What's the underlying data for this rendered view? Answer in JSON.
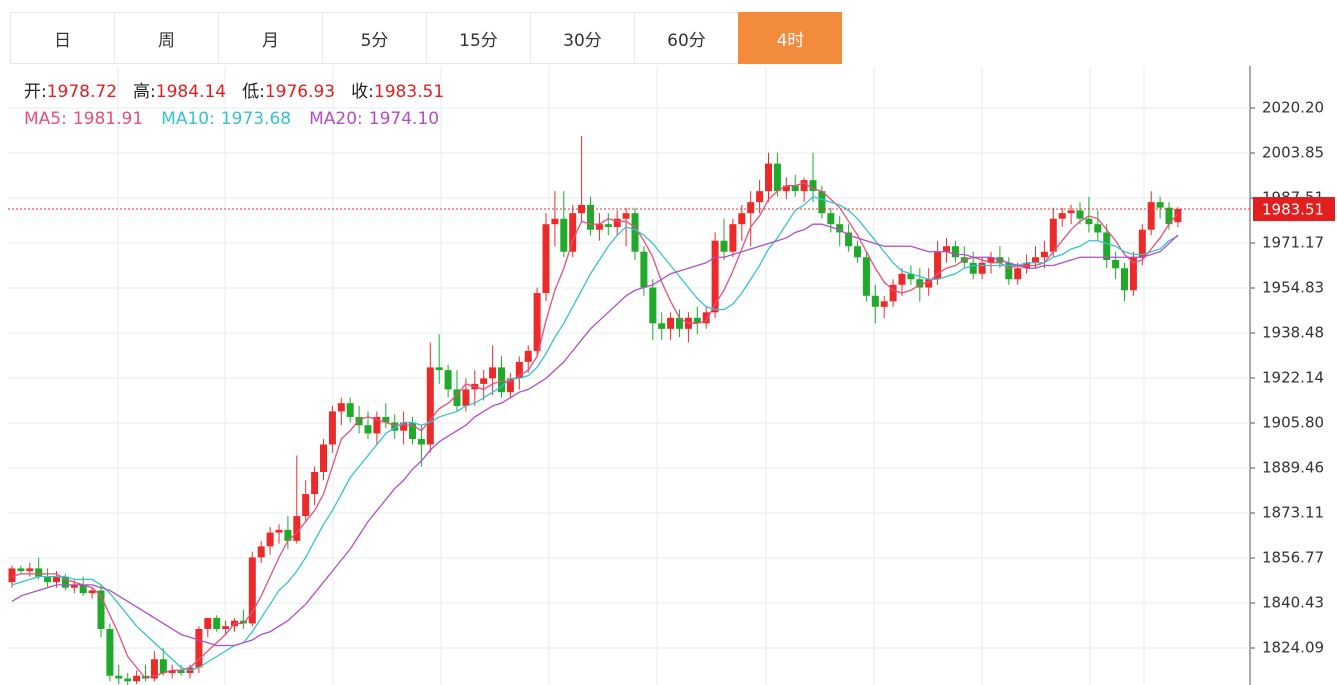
{
  "tabs": [
    "日",
    "周",
    "月",
    "5分",
    "15分",
    "30分",
    "60分",
    "4时"
  ],
  "active_tab": 7,
  "chart_data": {
    "type": "candlestick",
    "ohlc_legend": [
      {
        "label": "开:",
        "value": 1978.72
      },
      {
        "label": "高:",
        "value": 1984.14
      },
      {
        "label": "低:",
        "value": 1976.93
      },
      {
        "label": "收:",
        "value": 1983.51
      }
    ],
    "up_color": "#eb2a2a",
    "down_color": "#1faa2a",
    "current_price": 1983.51,
    "ylim": [
      1810.65,
      2035.45
    ],
    "yticks": [
      {
        "value": 2020.2,
        "label": "2020.20"
      },
      {
        "value": 2003.85,
        "label": "2003.85"
      },
      {
        "value": 1987.51,
        "label": "1987.51"
      },
      {
        "value": 1971.17,
        "label": "1971.17"
      },
      {
        "value": 1954.83,
        "label": "1954.83"
      },
      {
        "value": 1938.48,
        "label": "1938.48"
      },
      {
        "value": 1922.14,
        "label": "1922.14"
      },
      {
        "value": 1905.8,
        "label": "1905.80"
      },
      {
        "value": 1889.46,
        "label": "1889.46"
      },
      {
        "value": 1873.11,
        "label": "1873.11"
      },
      {
        "value": 1856.77,
        "label": "1856.77"
      },
      {
        "value": 1840.43,
        "label": "1840.43"
      },
      {
        "value": 1824.09,
        "label": "1824.09"
      }
    ],
    "grid": true,
    "candles": [
      [
        1848,
        1854,
        1846,
        1853
      ],
      [
        1853,
        1854,
        1851,
        1852
      ],
      [
        1852,
        1855,
        1850,
        1853
      ],
      [
        1853,
        1857,
        1849,
        1850
      ],
      [
        1850,
        1853,
        1846,
        1848
      ],
      [
        1848,
        1852,
        1846,
        1850
      ],
      [
        1850,
        1851,
        1845,
        1846
      ],
      [
        1846,
        1849,
        1844,
        1847
      ],
      [
        1847,
        1850,
        1843,
        1844
      ],
      [
        1844,
        1846,
        1842,
        1845
      ],
      [
        1845,
        1847,
        1828,
        1831
      ],
      [
        1831,
        1833,
        1812,
        1814
      ],
      [
        1814,
        1818,
        1811,
        1813
      ],
      [
        1813,
        1815,
        1810,
        1812
      ],
      [
        1812,
        1816,
        1811,
        1814
      ],
      [
        1814,
        1818,
        1812,
        1813
      ],
      [
        1813,
        1823,
        1812,
        1820
      ],
      [
        1820,
        1824,
        1814,
        1815
      ],
      [
        1815,
        1818,
        1813,
        1816
      ],
      [
        1816,
        1818,
        1814,
        1815
      ],
      [
        1815,
        1818,
        1813,
        1817
      ],
      [
        1817,
        1832,
        1815,
        1831
      ],
      [
        1831,
        1835,
        1828,
        1835
      ],
      [
        1835,
        1836,
        1830,
        1831
      ],
      [
        1831,
        1834,
        1829,
        1832
      ],
      [
        1832,
        1835,
        1830,
        1834
      ],
      [
        1834,
        1838,
        1831,
        1833
      ],
      [
        1833,
        1859,
        1832,
        1857
      ],
      [
        1857,
        1863,
        1855,
        1861
      ],
      [
        1861,
        1868,
        1858,
        1866
      ],
      [
        1866,
        1869,
        1862,
        1867
      ],
      [
        1867,
        1872,
        1860,
        1863
      ],
      [
        1863,
        1894,
        1862,
        1872
      ],
      [
        1872,
        1885,
        1870,
        1880
      ],
      [
        1880,
        1890,
        1876,
        1888
      ],
      [
        1888,
        1900,
        1885,
        1898
      ],
      [
        1898,
        1912,
        1895,
        1910
      ],
      [
        1910,
        1915,
        1905,
        1913
      ],
      [
        1913,
        1915,
        1906,
        1908
      ],
      [
        1908,
        1912,
        1902,
        1905
      ],
      [
        1905,
        1910,
        1900,
        1902
      ],
      [
        1902,
        1910,
        1898,
        1908
      ],
      [
        1908,
        1913,
        1904,
        1906
      ],
      [
        1906,
        1909,
        1900,
        1903
      ],
      [
        1903,
        1910,
        1898,
        1906
      ],
      [
        1906,
        1908,
        1898,
        1900
      ],
      [
        1900,
        1905,
        1890,
        1898
      ],
      [
        1898,
        1935,
        1895,
        1926
      ],
      [
        1926,
        1938,
        1920,
        1925
      ],
      [
        1925,
        1927,
        1915,
        1918
      ],
      [
        1918,
        1925,
        1910,
        1912
      ],
      [
        1912,
        1922,
        1910,
        1918
      ],
      [
        1918,
        1925,
        1912,
        1920
      ],
      [
        1920,
        1925,
        1914,
        1922
      ],
      [
        1922,
        1934,
        1916,
        1926
      ],
      [
        1926,
        1930,
        1915,
        1917
      ],
      [
        1917,
        1924,
        1915,
        1922
      ],
      [
        1922,
        1930,
        1918,
        1928
      ],
      [
        1928,
        1934,
        1924,
        1932
      ],
      [
        1932,
        1955,
        1930,
        1953
      ],
      [
        1953,
        1982,
        1950,
        1978
      ],
      [
        1978,
        1990,
        1970,
        1980
      ],
      [
        1980,
        1990,
        1966,
        1968
      ],
      [
        1968,
        1985,
        1966,
        1982
      ],
      [
        1982,
        2010,
        1979,
        1985
      ],
      [
        1985,
        1988,
        1974,
        1976
      ],
      [
        1976,
        1982,
        1972,
        1978
      ],
      [
        1978,
        1982,
        1974,
        1977
      ],
      [
        1977,
        1983,
        1974,
        1980
      ],
      [
        1980,
        1984,
        1970,
        1982
      ],
      [
        1982,
        1984,
        1965,
        1968
      ],
      [
        1968,
        1970,
        1952,
        1955
      ],
      [
        1955,
        1958,
        1936,
        1942
      ],
      [
        1942,
        1946,
        1936,
        1940
      ],
      [
        1940,
        1946,
        1936,
        1944
      ],
      [
        1944,
        1947,
        1937,
        1940
      ],
      [
        1940,
        1946,
        1935,
        1944
      ],
      [
        1944,
        1948,
        1938,
        1942
      ],
      [
        1942,
        1948,
        1940,
        1946
      ],
      [
        1946,
        1975,
        1944,
        1972
      ],
      [
        1972,
        1980,
        1965,
        1968
      ],
      [
        1968,
        1980,
        1966,
        1978
      ],
      [
        1978,
        1985,
        1972,
        1982
      ],
      [
        1982,
        1990,
        1970,
        1986
      ],
      [
        1986,
        1994,
        1982,
        1990
      ],
      [
        1990,
        2004,
        1986,
        2000
      ],
      [
        2000,
        2004,
        1988,
        1990
      ],
      [
        1990,
        1995,
        1987,
        1992
      ],
      [
        1992,
        1996,
        1988,
        1990
      ],
      [
        1990,
        1995,
        1986,
        1994
      ],
      [
        1994,
        2004,
        1986,
        1990
      ],
      [
        1990,
        1992,
        1980,
        1982
      ],
      [
        1982,
        1984,
        1975,
        1978
      ],
      [
        1978,
        1981,
        1970,
        1975
      ],
      [
        1975,
        1978,
        1968,
        1970
      ],
      [
        1970,
        1972,
        1964,
        1966
      ],
      [
        1966,
        1968,
        1950,
        1952
      ],
      [
        1952,
        1956,
        1942,
        1948
      ],
      [
        1948,
        1952,
        1944,
        1950
      ],
      [
        1950,
        1958,
        1948,
        1956
      ],
      [
        1956,
        1962,
        1952,
        1960
      ],
      [
        1960,
        1963,
        1956,
        1958
      ],
      [
        1958,
        1962,
        1950,
        1955
      ],
      [
        1955,
        1962,
        1952,
        1958
      ],
      [
        1958,
        1972,
        1956,
        1968
      ],
      [
        1968,
        1973,
        1964,
        1970
      ],
      [
        1970,
        1972,
        1964,
        1966
      ],
      [
        1966,
        1970,
        1962,
        1964
      ],
      [
        1964,
        1968,
        1958,
        1960
      ],
      [
        1960,
        1966,
        1958,
        1964
      ],
      [
        1964,
        1968,
        1960,
        1966
      ],
      [
        1966,
        1970,
        1962,
        1964
      ],
      [
        1964,
        1966,
        1956,
        1958
      ],
      [
        1958,
        1964,
        1956,
        1962
      ],
      [
        1962,
        1967,
        1960,
        1964
      ],
      [
        1964,
        1970,
        1962,
        1966
      ],
      [
        1966,
        1972,
        1962,
        1968
      ],
      [
        1968,
        1984,
        1966,
        1980
      ],
      [
        1980,
        1984,
        1977,
        1982
      ],
      [
        1982,
        1985,
        1978,
        1983
      ],
      [
        1983,
        1986,
        1978,
        1980
      ],
      [
        1980,
        1988,
        1975,
        1978
      ],
      [
        1978,
        1983,
        1972,
        1975
      ],
      [
        1975,
        1978,
        1962,
        1965
      ],
      [
        1965,
        1968,
        1958,
        1962
      ],
      [
        1962,
        1964,
        1950,
        1954
      ],
      [
        1954,
        1968,
        1952,
        1966
      ],
      [
        1966,
        1978,
        1963,
        1976
      ],
      [
        1976,
        1990,
        1974,
        1986
      ],
      [
        1986,
        1988,
        1980,
        1984
      ],
      [
        1984,
        1986,
        1976,
        1978
      ],
      [
        1978.72,
        1984.14,
        1976.93,
        1983.51
      ]
    ],
    "series": [
      {
        "name": "MA5:",
        "color": "#e5507d",
        "last": 1981.91,
        "values": [
          1850,
          1851,
          1851,
          1851,
          1851,
          1851,
          1849,
          1848,
          1847,
          1846,
          1843,
          1836,
          1829,
          1821,
          1817,
          1813,
          1814,
          1815,
          1816,
          1816,
          1817,
          1820,
          1823,
          1826,
          1829,
          1833,
          1833,
          1837,
          1843,
          1850,
          1857,
          1863,
          1866,
          1870,
          1874,
          1880,
          1890,
          1900,
          1903,
          1907,
          1908,
          1907,
          1906,
          1905,
          1905,
          1905,
          1903,
          1907,
          1911,
          1913,
          1916,
          1920,
          1919,
          1918,
          1920,
          1921,
          1921,
          1923,
          1925,
          1930,
          1943,
          1954,
          1962,
          1972,
          1979,
          1978,
          1978,
          1980,
          1979,
          1979,
          1977,
          1972,
          1966,
          1957,
          1950,
          1944,
          1942,
          1942,
          1943,
          1949,
          1954,
          1961,
          1969,
          1977,
          1981,
          1987,
          1990,
          1992,
          1992,
          1993,
          1991,
          1990,
          1987,
          1984,
          1979,
          1974,
          1968,
          1962,
          1957,
          1954,
          1953,
          1954,
          1956,
          1957,
          1960,
          1962,
          1963,
          1965,
          1966,
          1965,
          1964,
          1964,
          1962,
          1963,
          1963,
          1963,
          1964,
          1968,
          1972,
          1976,
          1979,
          1981,
          1980,
          1976,
          1972,
          1967,
          1964,
          1965,
          1969,
          1973,
          1978,
          1981.91
        ]
      },
      {
        "name": "MA10:",
        "color": "#36c2cf",
        "last": 1973.68,
        "values": [
          1847,
          1848,
          1849,
          1850,
          1850,
          1850,
          1850,
          1849,
          1849,
          1849,
          1847,
          1844,
          1840,
          1836,
          1832,
          1829,
          1826,
          1823,
          1820,
          1817,
          1816,
          1817,
          1819,
          1821,
          1823,
          1825,
          1826,
          1830,
          1835,
          1840,
          1845,
          1848,
          1852,
          1857,
          1863,
          1869,
          1874,
          1880,
          1886,
          1890,
          1894,
          1898,
          1902,
          1904,
          1906,
          1906,
          1905,
          1906,
          1908,
          1909,
          1910,
          1912,
          1913,
          1915,
          1917,
          1919,
          1922,
          1922,
          1923,
          1926,
          1931,
          1937,
          1942,
          1948,
          1954,
          1960,
          1965,
          1970,
          1974,
          1977,
          1976,
          1974,
          1971,
          1967,
          1963,
          1959,
          1955,
          1951,
          1948,
          1947,
          1947,
          1949,
          1953,
          1958,
          1963,
          1969,
          1973,
          1978,
          1983,
          1985,
          1988,
          1987,
          1986,
          1985,
          1983,
          1980,
          1976,
          1972,
          1968,
          1964,
          1961,
          1960,
          1959,
          1958,
          1958,
          1959,
          1960,
          1962,
          1963,
          1963,
          1963,
          1963,
          1963,
          1963,
          1964,
          1964,
          1964,
          1966,
          1967,
          1969,
          1970,
          1972,
          1972,
          1971,
          1970,
          1968,
          1967,
          1967,
          1968,
          1969,
          1972,
          1973.68
        ]
      },
      {
        "name": "MA20:",
        "color": "#b04fc4",
        "last": 1974.1,
        "last_label": "1974.10",
        "values": [
          1841,
          1843,
          1844,
          1845,
          1846,
          1847,
          1847,
          1847,
          1847,
          1847,
          1846,
          1845,
          1843,
          1841,
          1839,
          1837,
          1835,
          1833,
          1831,
          1829,
          1828,
          1827,
          1826,
          1825,
          1825,
          1825,
          1826,
          1827,
          1829,
          1830,
          1832,
          1834,
          1837,
          1840,
          1844,
          1848,
          1852,
          1856,
          1860,
          1865,
          1870,
          1874,
          1878,
          1882,
          1885,
          1889,
          1892,
          1896,
          1899,
          1901,
          1903,
          1905,
          1908,
          1910,
          1912,
          1913,
          1915,
          1917,
          1918,
          1920,
          1922,
          1925,
          1928,
          1932,
          1936,
          1940,
          1943,
          1946,
          1949,
          1952,
          1954,
          1955,
          1956,
          1958,
          1960,
          1961,
          1962,
          1963,
          1964,
          1966,
          1966,
          1967,
          1968,
          1969,
          1970,
          1971,
          1972,
          1973,
          1975,
          1976,
          1978,
          1978,
          1977,
          1976,
          1974,
          1973,
          1972,
          1971,
          1970,
          1970,
          1970,
          1970,
          1969,
          1968,
          1968,
          1968,
          1967,
          1967,
          1966,
          1966,
          1966,
          1965,
          1964,
          1963,
          1962,
          1962,
          1963,
          1963,
          1964,
          1965,
          1966,
          1966,
          1966,
          1966,
          1966,
          1966,
          1966,
          1966,
          1967,
          1968,
          1971,
          1974.1
        ]
      }
    ]
  }
}
